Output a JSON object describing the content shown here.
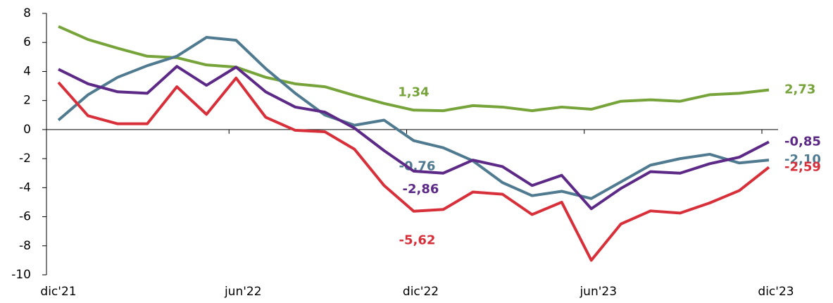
{
  "chart_data": {
    "type": "line",
    "categories": [
      "dic'21",
      null,
      null,
      null,
      null,
      null,
      "jun'22",
      null,
      null,
      null,
      null,
      null,
      "dic'22",
      null,
      null,
      null,
      null,
      null,
      "jun'23",
      null,
      null,
      null,
      null,
      null,
      "dic'23"
    ],
    "ylim": [
      -10,
      8
    ],
    "yticks": [
      -10,
      -8,
      -6,
      -4,
      -2,
      0,
      2,
      4,
      6,
      8
    ],
    "grid": false,
    "series": [
      {
        "color": "#77a43a",
        "values": [
          7.1,
          6.2,
          5.6,
          5.05,
          4.95,
          4.45,
          4.3,
          3.6,
          3.15,
          2.95,
          2.35,
          1.8,
          1.34,
          1.3,
          1.65,
          1.55,
          1.3,
          1.55,
          1.4,
          1.95,
          2.05,
          1.95,
          2.4,
          2.5,
          2.73
        ],
        "value_labels": [
          null,
          null,
          null,
          null,
          null,
          null,
          null,
          null,
          null,
          null,
          null,
          null,
          "1,34",
          null,
          null,
          null,
          null,
          null,
          null,
          null,
          null,
          null,
          null,
          null,
          "2,73"
        ]
      },
      {
        "color": "#4f7a8f",
        "values": [
          0.65,
          2.4,
          3.6,
          4.4,
          5.05,
          6.35,
          6.15,
          4.2,
          2.5,
          1.0,
          0.3,
          0.65,
          -0.76,
          -1.25,
          -2.15,
          -3.65,
          -4.55,
          -4.25,
          -4.75,
          -3.6,
          -2.45,
          -2.0,
          -1.7,
          -2.3,
          -2.1
        ],
        "value_labels": [
          null,
          null,
          null,
          null,
          null,
          null,
          null,
          null,
          null,
          null,
          null,
          null,
          "-0,76",
          null,
          null,
          null,
          null,
          null,
          null,
          null,
          null,
          null,
          null,
          null,
          "-2,10"
        ]
      },
      {
        "color": "#5c2a86",
        "values": [
          4.15,
          3.15,
          2.6,
          2.5,
          4.35,
          3.05,
          4.3,
          2.6,
          1.55,
          1.2,
          0.1,
          -1.45,
          -2.86,
          -3.0,
          -2.1,
          -2.55,
          -3.85,
          -3.15,
          -5.45,
          -4.05,
          -2.9,
          -3.0,
          -2.35,
          -1.9,
          -0.85
        ],
        "value_labels": [
          null,
          null,
          null,
          null,
          null,
          null,
          null,
          null,
          null,
          null,
          null,
          null,
          "-2,86",
          null,
          null,
          null,
          null,
          null,
          null,
          null,
          null,
          null,
          null,
          null,
          "-0,85"
        ]
      },
      {
        "color": "#d7303a",
        "values": [
          3.25,
          0.95,
          0.4,
          0.4,
          2.95,
          1.05,
          3.55,
          0.85,
          -0.05,
          -0.15,
          -1.35,
          -3.85,
          -5.62,
          -5.5,
          -4.3,
          -4.45,
          -5.85,
          -5.0,
          -9.0,
          -6.5,
          -5.6,
          -5.75,
          -5.05,
          -4.2,
          -2.59
        ],
        "value_labels": [
          null,
          null,
          null,
          null,
          null,
          null,
          null,
          null,
          null,
          null,
          null,
          null,
          "-5,62",
          null,
          null,
          null,
          null,
          null,
          null,
          null,
          null,
          null,
          null,
          null,
          "-2,59"
        ]
      }
    ]
  }
}
